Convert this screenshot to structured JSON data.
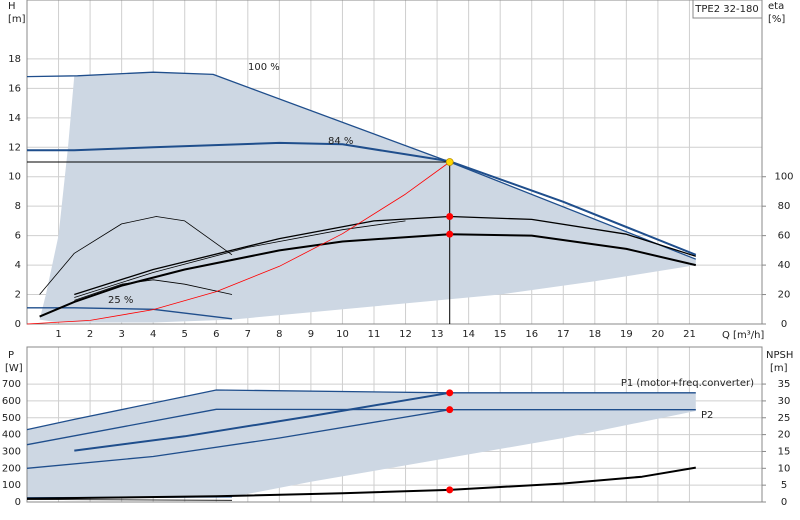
{
  "chart_data": [
    {
      "type": "line",
      "title": "TPE2 32-180",
      "ylabel": "H",
      "yunit": "[m]",
      "y2label": "eta",
      "y2unit": "[%]",
      "xlabel": "Q [m³/h]",
      "xlim": [
        0,
        23.3
      ],
      "xticks": [
        1,
        2,
        3,
        4,
        5,
        6,
        7,
        8,
        9,
        10,
        11,
        12,
        13,
        14,
        15,
        16,
        17,
        18,
        19,
        20,
        21
      ],
      "xticklabels": true,
      "ylim": [
        0,
        22
      ],
      "yticks": [
        0,
        2,
        4,
        6,
        8,
        10,
        12,
        14,
        16,
        18
      ],
      "y2lim": [
        0,
        220
      ],
      "y2ticks": [
        0,
        20,
        40,
        60,
        80,
        100
      ],
      "grid": true,
      "region": {
        "color": "#cdd7e3",
        "x": [
          1.5,
          4,
          5.9,
          13.4,
          21.2,
          21.2,
          18,
          15,
          12,
          9,
          6.5,
          4,
          1,
          0.4,
          0.6,
          1.0,
          1.3
        ],
        "y": [
          16.85,
          17.1,
          16.95,
          11,
          4.4,
          4.0,
          2.9,
          2.0,
          1.4,
          0.8,
          0.3,
          0.1,
          0.1,
          0.3,
          2,
          6,
          12
        ]
      },
      "series": [
        {
          "name": "100 %",
          "color": "#1f4e8c",
          "line": "normal",
          "x": [
            0,
            1.6,
            4,
            5.9,
            13.4,
            21.2
          ],
          "values": [
            16.8,
            16.85,
            17.1,
            16.95,
            11,
            4.4
          ]
        },
        {
          "name": "84 %",
          "color": "#1f4e8c",
          "line": "bold",
          "x": [
            0,
            1.5,
            4,
            8,
            10,
            13.4,
            17,
            21.2
          ],
          "values": [
            11.8,
            11.8,
            12.0,
            12.3,
            12.2,
            11.05,
            8.3,
            4.7
          ]
        },
        {
          "name": "25 %",
          "color": "#1f4e8c",
          "line": "normal",
          "x": [
            0,
            1.5,
            4,
            6.5
          ],
          "values": [
            1.1,
            1.1,
            1.0,
            0.35
          ]
        },
        {
          "color": "#000000",
          "line": "bold",
          "axis": "y2",
          "x": [
            0.4,
            1.5,
            3,
            5,
            8,
            10,
            13.4,
            16,
            19,
            21.2
          ],
          "values": [
            5,
            15,
            26,
            37,
            50,
            56,
            61,
            60,
            51,
            40
          ]
        },
        {
          "color": "#000000",
          "line": "normal",
          "axis": "y2",
          "x": [
            1.5,
            4,
            8,
            11,
            13.4,
            16,
            19,
            21.2
          ],
          "values": [
            20,
            37,
            58,
            70,
            73,
            71,
            61,
            46
          ]
        },
        {
          "color": "#000000",
          "line": "thin",
          "axis": "y2",
          "x": [
            1.5,
            4,
            7,
            10,
            12
          ],
          "values": [
            18,
            35,
            52,
            64,
            70
          ]
        },
        {
          "color": "#000000",
          "line": "thin",
          "axis": "y2",
          "x": [
            0.4,
            1.5,
            3,
            4.1,
            5,
            6.5
          ],
          "values": [
            20,
            48,
            68,
            73,
            70,
            47
          ]
        },
        {
          "color": "#000000",
          "line": "thin",
          "axis": "y2",
          "x": [
            1.5,
            3,
            4,
            5,
            6.5
          ],
          "values": [
            16,
            27,
            30,
            27,
            20
          ]
        },
        {
          "color": "#ff0000",
          "line": "thin",
          "x": [
            0,
            2,
            4,
            6,
            8,
            10,
            12,
            13.4
          ],
          "values": [
            0,
            0.245,
            0.98,
            2.2,
            3.92,
            6.13,
            8.82,
            11
          ]
        }
      ],
      "points": [
        {
          "x": 13.4,
          "y": 11,
          "color": "#ffd800",
          "crosshair": true
        },
        {
          "x": 13.4,
          "y": 73,
          "axis": "y2",
          "color": "#ff0000"
        },
        {
          "x": 13.4,
          "y": 61,
          "axis": "y2",
          "color": "#ff0000"
        }
      ]
    },
    {
      "type": "line",
      "ylabel": "P",
      "yunit": "[W]",
      "y2label": "NPSH",
      "y2unit": "[m]",
      "xlim": [
        0,
        23.3
      ],
      "xticks": [
        1,
        2,
        3,
        4,
        5,
        6,
        7,
        8,
        9,
        10,
        11,
        12,
        13,
        14,
        15,
        16,
        17,
        18,
        19,
        20,
        21
      ],
      "xticklabels": false,
      "ylim": [
        0,
        920
      ],
      "yticks": [
        0,
        100,
        200,
        300,
        400,
        500,
        600,
        700
      ],
      "y2lim": [
        0,
        46
      ],
      "y2ticks": [
        0,
        5,
        10,
        15,
        20,
        25,
        30,
        35
      ],
      "grid": true,
      "region": {
        "color": "#cdd7e3",
        "x": [
          0,
          1.5,
          6,
          13.4,
          21.2,
          21.2,
          17,
          13,
          9,
          6.5,
          0
        ],
        "y": [
          430,
          490,
          665,
          648,
          648,
          540,
          380,
          250,
          120,
          30,
          20
        ]
      },
      "series": [
        {
          "name": "P1 (motor+freq.converter)",
          "color": "#1f4e8c",
          "line": "normal",
          "x": [
            0,
            1.5,
            6,
            13.4,
            21.2
          ],
          "values": [
            430,
            490,
            665,
            648,
            648
          ]
        },
        {
          "name": "P2",
          "color": "#1f4e8c",
          "line": "normal",
          "x": [
            0,
            6,
            13.4,
            21.2
          ],
          "values": [
            340,
            550,
            548,
            548
          ]
        },
        {
          "color": "#1f4e8c",
          "line": "bold",
          "x": [
            1.5,
            5,
            9,
            13.4
          ],
          "values": [
            305,
            390,
            510,
            648
          ]
        },
        {
          "color": "#1f4e8c",
          "line": "normal",
          "x": [
            0,
            4,
            8,
            13.4
          ],
          "values": [
            200,
            270,
            380,
            548
          ]
        },
        {
          "color": "#1f4e8c",
          "line": "normal",
          "x": [
            0,
            6.5
          ],
          "values": [
            25,
            30
          ]
        },
        {
          "color": "#000000",
          "line": "thin",
          "x": [
            0,
            6.5
          ],
          "values": [
            15,
            10
          ]
        },
        {
          "color": "#000000",
          "line": "bold",
          "axis": "y2",
          "x": [
            0,
            6,
            10,
            13.4,
            17,
            19.5,
            21.2
          ],
          "values": [
            1,
            1.7,
            2.6,
            3.6,
            5.5,
            7.5,
            10.2
          ]
        }
      ],
      "points": [
        {
          "x": 13.4,
          "y": 648,
          "color": "#ff0000"
        },
        {
          "x": 13.4,
          "y": 548,
          "color": "#ff0000"
        },
        {
          "x": 13.4,
          "y": 3.6,
          "axis": "y2",
          "color": "#ff0000"
        }
      ]
    }
  ]
}
